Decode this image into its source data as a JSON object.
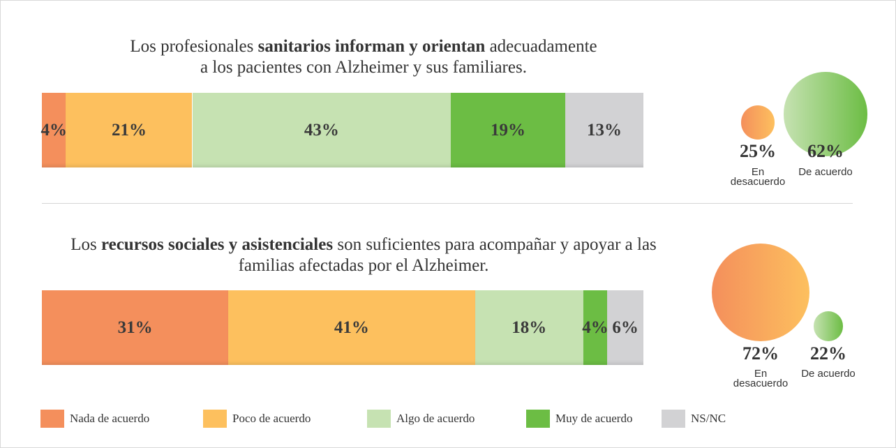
{
  "legend": {
    "names": [
      "Nada de acuerdo",
      "Poco de acuerdo",
      "Algo de acuerdo",
      "Muy de acuerdo",
      "NS/NC"
    ],
    "colors": [
      "#f48f5c",
      "#fdc05e",
      "#c6e2b2",
      "#6cbd44",
      "#d2d2d4"
    ]
  },
  "chart_data": [
    {
      "type": "bar",
      "title": [
        {
          "text": "Los profesionales ",
          "bold": false
        },
        {
          "text": "sanitarios informan y orientan",
          "bold": true
        },
        {
          "text": " adecuadamente a los pacientes con Alzheimer y sus familiares.",
          "bold": false
        }
      ],
      "values": [
        4,
        21,
        43,
        19,
        13
      ],
      "value_labels": [
        "4%",
        "21%",
        "43%",
        "19%",
        "13%"
      ],
      "summary": {
        "values": [
          25,
          62
        ],
        "value_labels": [
          "25%",
          "62%"
        ],
        "labels": [
          "En desacuerdo",
          "De acuerdo"
        ]
      }
    },
    {
      "type": "bar",
      "title": [
        {
          "text": "Los ",
          "bold": false
        },
        {
          "text": "recursos sociales y asistenciales",
          "bold": true
        },
        {
          "text": " son suficientes para acompañar y apoyar a las familias afectadas por el Alzheimer.",
          "bold": false
        }
      ],
      "values": [
        31,
        41,
        18,
        4,
        6
      ],
      "value_labels": [
        "31%",
        "41%",
        "18%",
        "4%",
        "6%"
      ],
      "summary": {
        "values": [
          72,
          22
        ],
        "value_labels": [
          "72%",
          "22%"
        ],
        "labels": [
          "En desacuerdo",
          "De acuerdo"
        ]
      }
    }
  ]
}
